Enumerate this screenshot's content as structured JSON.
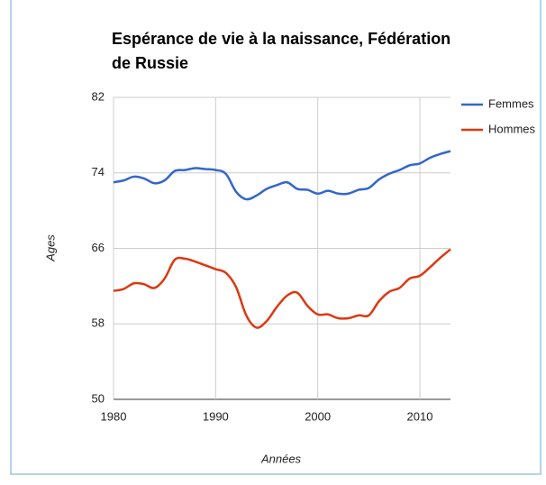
{
  "chart_data": {
    "type": "line",
    "title": "Espérance de vie à la naissance, Fédération de Russie",
    "x_label": "Années",
    "y_label": "Ages",
    "x": [
      1980,
      1981,
      1982,
      1983,
      1984,
      1985,
      1986,
      1987,
      1988,
      1989,
      1990,
      1991,
      1992,
      1993,
      1994,
      1995,
      1996,
      1997,
      1998,
      1999,
      2000,
      2001,
      2002,
      2003,
      2004,
      2005,
      2006,
      2007,
      2008,
      2009,
      2010,
      2011,
      2012,
      2013
    ],
    "series": [
      {
        "name": "Femmes",
        "color": "#3366cc",
        "values": [
          73.0,
          73.2,
          73.6,
          73.4,
          72.9,
          73.2,
          74.2,
          74.3,
          74.5,
          74.4,
          74.3,
          73.9,
          72.0,
          71.2,
          71.6,
          72.3,
          72.7,
          73.0,
          72.3,
          72.2,
          71.8,
          72.1,
          71.8,
          71.8,
          72.2,
          72.4,
          73.3,
          73.9,
          74.3,
          74.8,
          75.0,
          75.6,
          76.0,
          76.3
        ]
      },
      {
        "name": "Hommes",
        "color": "#dc3912",
        "values": [
          61.5,
          61.7,
          62.3,
          62.2,
          61.8,
          62.8,
          64.8,
          64.9,
          64.6,
          64.2,
          63.8,
          63.4,
          61.9,
          58.9,
          57.6,
          58.3,
          59.8,
          61.0,
          61.3,
          59.9,
          59.0,
          59.0,
          58.6,
          58.6,
          58.9,
          58.9,
          60.4,
          61.4,
          61.8,
          62.8,
          63.1,
          64.0,
          65.0,
          65.9
        ]
      }
    ],
    "xlim": [
      1980,
      2013
    ],
    "xticks": [
      1980,
      1990,
      2000,
      2010
    ],
    "ylim": [
      50,
      82
    ],
    "yticks": [
      50,
      58,
      66,
      74,
      82
    ],
    "grid": true,
    "legend": "right"
  }
}
